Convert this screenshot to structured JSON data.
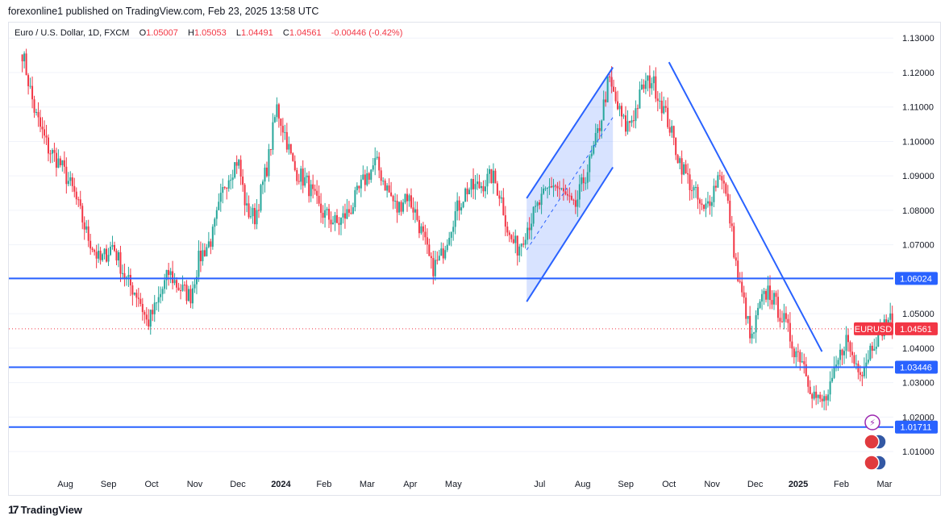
{
  "header": {
    "publish_line": "forexonline1 published on TradingView.com, Feb 23, 2025 13:58 UTC"
  },
  "legend": {
    "symbol": "Euro / U.S. Dollar, 1D, FXCM",
    "open_label": "O",
    "open": "1.05007",
    "high_label": "H",
    "high": "1.05053",
    "low_label": "L",
    "low": "1.04491",
    "close_label": "C",
    "close": "1.04561",
    "change": "-0.00446 (-0.42%)"
  },
  "footer": {
    "brand": "TradingView",
    "logo_glyph": "17"
  },
  "colors": {
    "up": "#26a69a",
    "down": "#f23645",
    "line": "#2962ff",
    "channel_fill": "rgba(41,98,255,0.18)",
    "axis_text": "#131722",
    "grid": "#f0f3fa"
  },
  "chart_data": {
    "type": "candlestick",
    "title": "Euro / U.S. Dollar, 1D, FXCM",
    "ylim": [
      1.003,
      1.1345
    ],
    "y_ticks": [
      "1.13000",
      "1.12000",
      "1.11000",
      "1.10000",
      "1.09000",
      "1.08000",
      "1.07000",
      "1.06000",
      "1.05000",
      "1.04000",
      "1.03000",
      "1.02000",
      "1.01000"
    ],
    "y_tick_values": [
      1.13,
      1.12,
      1.11,
      1.1,
      1.09,
      1.08,
      1.07,
      1.06,
      1.05,
      1.04,
      1.03,
      1.02,
      1.01
    ],
    "x_ticks": [
      {
        "label": "Aug",
        "month_index": 1
      },
      {
        "label": "Sep",
        "month_index": 2
      },
      {
        "label": "Oct",
        "month_index": 3
      },
      {
        "label": "Nov",
        "month_index": 4
      },
      {
        "label": "Dec",
        "month_index": 5
      },
      {
        "label": "2024",
        "month_index": 6,
        "bold": true
      },
      {
        "label": "Feb",
        "month_index": 7
      },
      {
        "label": "Mar",
        "month_index": 8
      },
      {
        "label": "Apr",
        "month_index": 9
      },
      {
        "label": "May",
        "month_index": 10
      },
      {
        "label": "Jul",
        "month_index": 12
      },
      {
        "label": "Aug",
        "month_index": 13
      },
      {
        "label": "Sep",
        "month_index": 14
      },
      {
        "label": "Oct",
        "month_index": 15
      },
      {
        "label": "Nov",
        "month_index": 16
      },
      {
        "label": "Dec",
        "month_index": 17
      },
      {
        "label": "2025",
        "month_index": 18,
        "bold": true
      },
      {
        "label": "Feb",
        "month_index": 19
      },
      {
        "label": "Mar",
        "month_index": 20
      }
    ],
    "price_path": [
      [
        0,
        1.126
      ],
      [
        0.3,
        1.108
      ],
      [
        0.6,
        1.098
      ],
      [
        0.9,
        1.093
      ],
      [
        1.2,
        1.085
      ],
      [
        1.5,
        1.073
      ],
      [
        1.8,
        1.065
      ],
      [
        2.1,
        1.07
      ],
      [
        2.4,
        1.06
      ],
      [
        2.7,
        1.055
      ],
      [
        2.9,
        1.047
      ],
      [
        3.1,
        1.052
      ],
      [
        3.4,
        1.062
      ],
      [
        3.6,
        1.058
      ],
      [
        3.9,
        1.055
      ],
      [
        4.1,
        1.066
      ],
      [
        4.4,
        1.072
      ],
      [
        4.7,
        1.088
      ],
      [
        5.0,
        1.095
      ],
      [
        5.2,
        1.08
      ],
      [
        5.4,
        1.078
      ],
      [
        5.7,
        1.094
      ],
      [
        5.9,
        1.11
      ],
      [
        6.1,
        1.102
      ],
      [
        6.3,
        1.092
      ],
      [
        6.6,
        1.088
      ],
      [
        6.9,
        1.08
      ],
      [
        7.1,
        1.078
      ],
      [
        7.3,
        1.076
      ],
      [
        7.6,
        1.08
      ],
      [
        7.9,
        1.088
      ],
      [
        8.2,
        1.094
      ],
      [
        8.4,
        1.088
      ],
      [
        8.7,
        1.08
      ],
      [
        8.9,
        1.085
      ],
      [
        9.1,
        1.08
      ],
      [
        9.3,
        1.072
      ],
      [
        9.5,
        1.063
      ],
      [
        9.7,
        1.066
      ],
      [
        10.0,
        1.078
      ],
      [
        10.3,
        1.086
      ],
      [
        10.6,
        1.087
      ],
      [
        10.9,
        1.09
      ],
      [
        11.1,
        1.084
      ],
      [
        11.3,
        1.072
      ],
      [
        11.5,
        1.069
      ],
      [
        11.7,
        1.075
      ],
      [
        12.0,
        1.082
      ],
      [
        12.3,
        1.088
      ],
      [
        12.6,
        1.084
      ],
      [
        12.8,
        1.08
      ],
      [
        13.0,
        1.088
      ],
      [
        13.2,
        1.095
      ],
      [
        13.4,
        1.105
      ],
      [
        13.6,
        1.118
      ],
      [
        13.8,
        1.11
      ],
      [
        14.0,
        1.104
      ],
      [
        14.2,
        1.108
      ],
      [
        14.4,
        1.116
      ],
      [
        14.6,
        1.118
      ],
      [
        14.8,
        1.112
      ],
      [
        15.0,
        1.105
      ],
      [
        15.2,
        1.096
      ],
      [
        15.4,
        1.09
      ],
      [
        15.6,
        1.085
      ],
      [
        15.8,
        1.079
      ],
      [
        16.0,
        1.085
      ],
      [
        16.2,
        1.092
      ],
      [
        16.4,
        1.079
      ],
      [
        16.6,
        1.06
      ],
      [
        16.8,
        1.05
      ],
      [
        16.9,
        1.041
      ],
      [
        17.1,
        1.052
      ],
      [
        17.3,
        1.057
      ],
      [
        17.5,
        1.052
      ],
      [
        17.7,
        1.047
      ],
      [
        17.9,
        1.04
      ],
      [
        18.1,
        1.037
      ],
      [
        18.3,
        1.028
      ],
      [
        18.5,
        1.024
      ],
      [
        18.7,
        1.026
      ],
      [
        18.9,
        1.035
      ],
      [
        19.1,
        1.043
      ],
      [
        19.3,
        1.036
      ],
      [
        19.5,
        1.034
      ],
      [
        19.7,
        1.041
      ],
      [
        19.9,
        1.045
      ],
      [
        20.1,
        1.049
      ],
      [
        20.2,
        1.0456
      ]
    ],
    "annotations": {
      "horizontal_lines": [
        {
          "label": "1.06024",
          "value": 1.06024
        },
        {
          "label": "1.03446",
          "value": 1.03446
        },
        {
          "label": "1.01711",
          "value": 1.01711
        }
      ],
      "last_price": {
        "label": "1.04561",
        "value": 1.04561,
        "symbol": "EURUSD"
      },
      "channel": {
        "upper": [
          [
            11.7,
            1.0835
          ],
          [
            13.7,
            1.1215
          ]
        ],
        "lower": [
          [
            11.7,
            1.0535
          ],
          [
            13.7,
            1.0925
          ]
        ],
        "midline": [
          [
            11.7,
            1.0685
          ],
          [
            13.7,
            1.107
          ]
        ]
      },
      "trendline": [
        [
          15.0,
          1.123
        ],
        [
          18.55,
          1.039
        ]
      ]
    }
  }
}
